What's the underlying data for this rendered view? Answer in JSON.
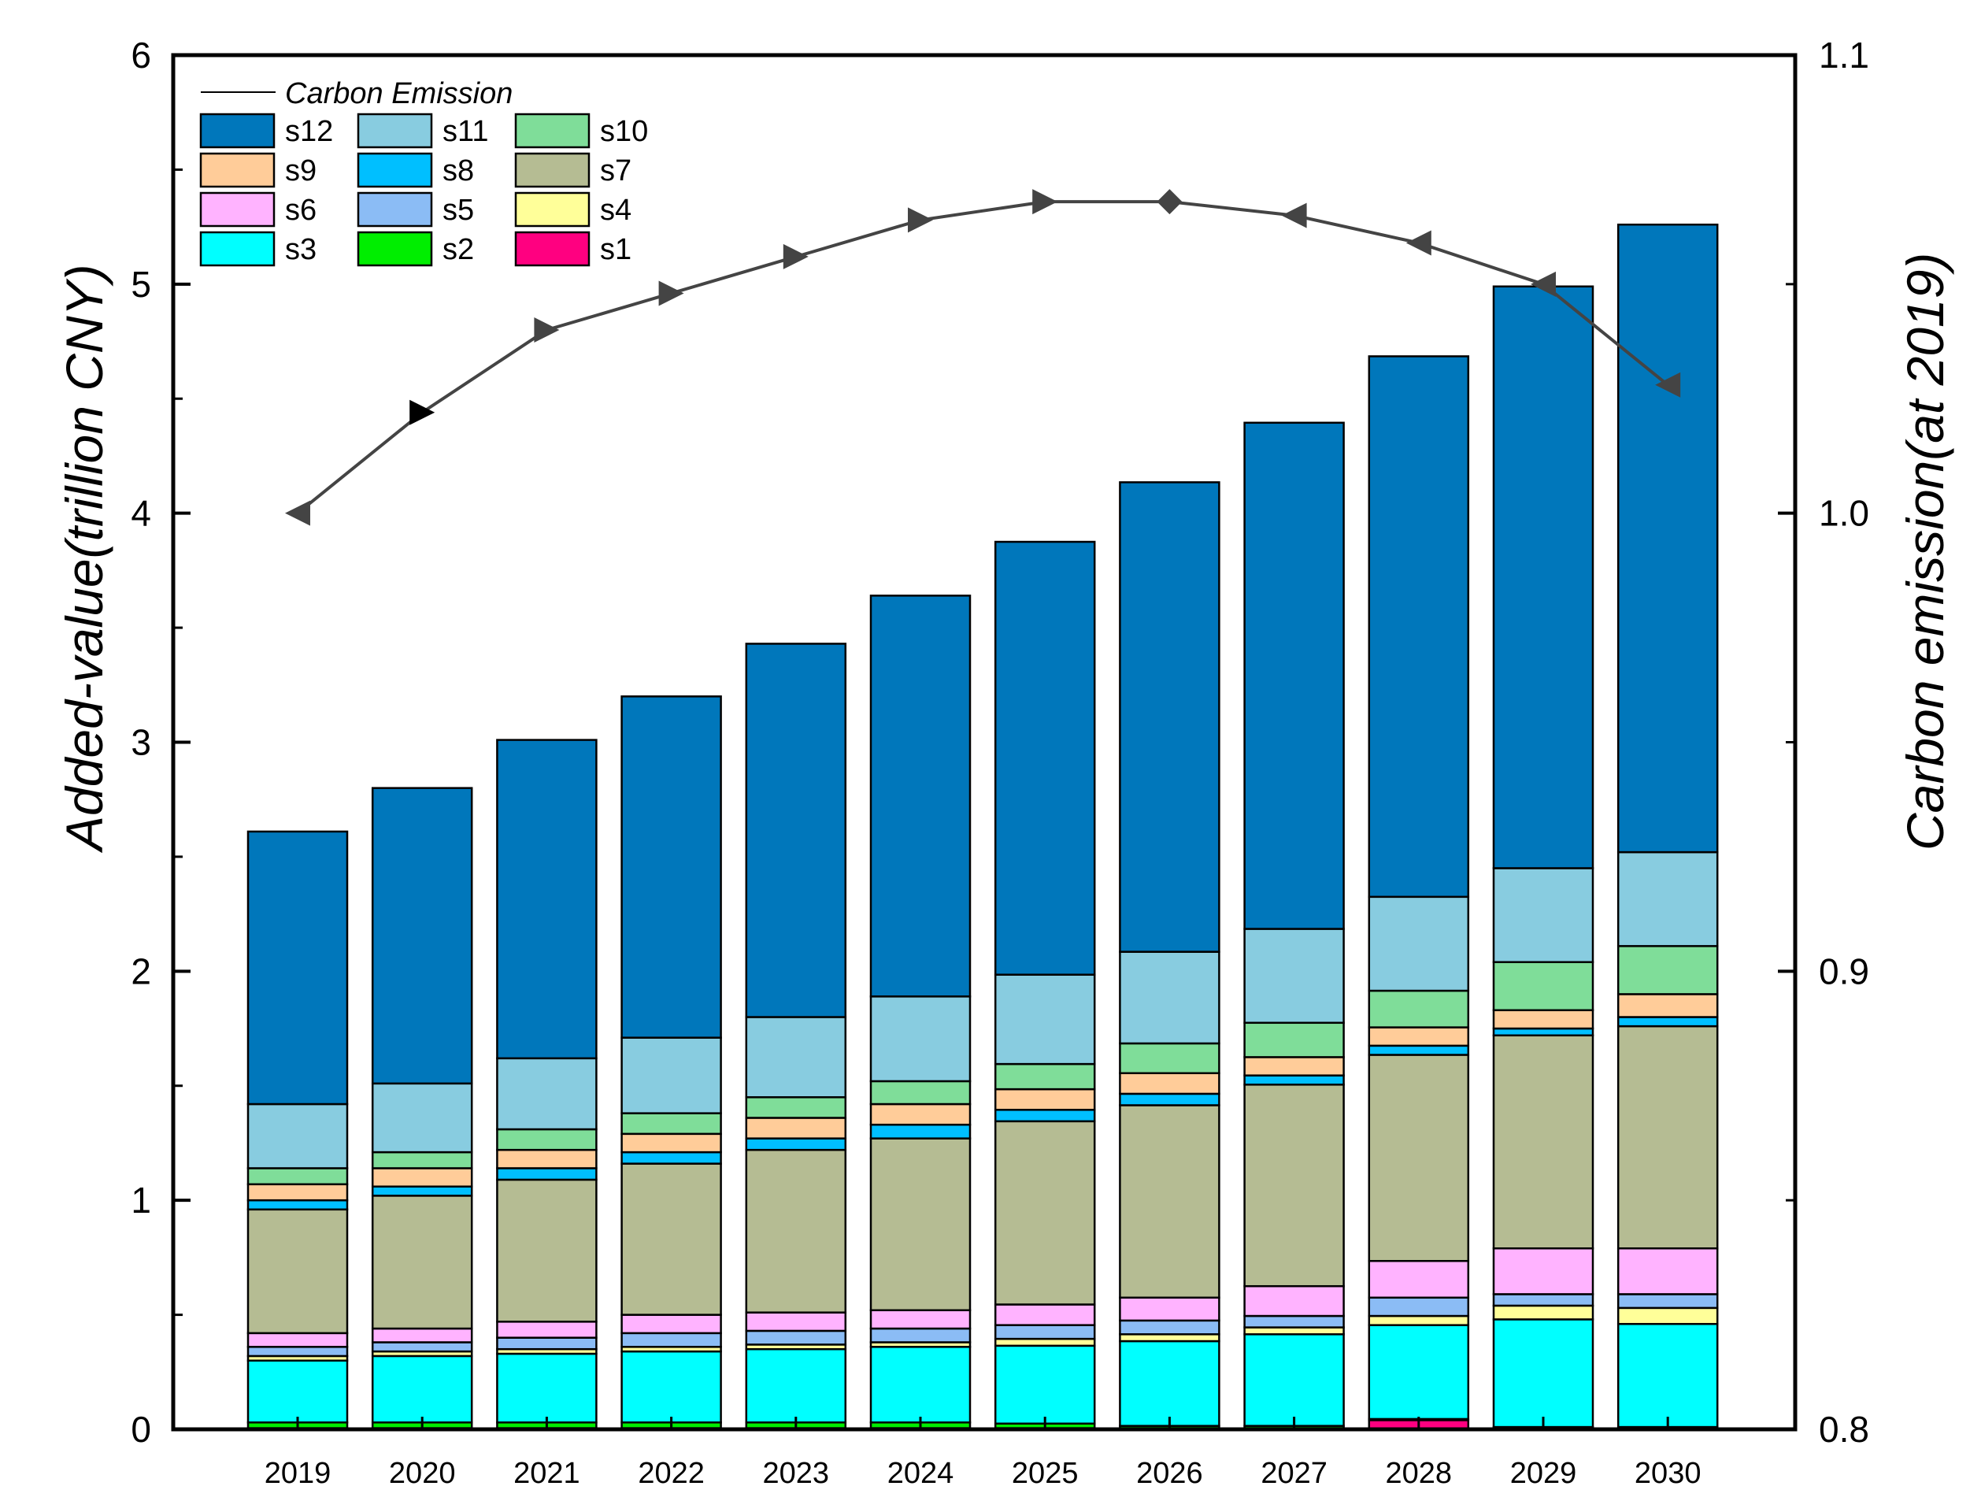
{
  "chart_data": {
    "type": "bar",
    "stacked": true,
    "categories": [
      "2019",
      "2020",
      "2021",
      "2022",
      "2023",
      "2024",
      "2025",
      "2026",
      "2027",
      "2028",
      "2029",
      "2030"
    ],
    "xlabel": "",
    "ylabel": "Added-value(trillion CNY)",
    "y2label": "Carbon emission(at 2019)",
    "ylim": [
      0,
      6
    ],
    "yticks": [
      "0",
      "1",
      "2",
      "3",
      "4",
      "5",
      "6"
    ],
    "y2lim": [
      0.8,
      1.1
    ],
    "y2ticks": [
      "0.8",
      "0.9",
      "1.0",
      "1.1"
    ],
    "legend_position": "top-left",
    "line_legend_label": "Carbon Emission",
    "series": [
      {
        "name": "s1",
        "color": "#ff0080",
        "values": [
          0.005,
          0.005,
          0.005,
          0.005,
          0.005,
          0.005,
          0.005,
          0.005,
          0.005,
          0.04,
          0.005,
          0.005
        ]
      },
      {
        "name": "s2",
        "color": "#00ee00",
        "values": [
          0.025,
          0.025,
          0.025,
          0.025,
          0.025,
          0.025,
          0.02,
          0.01,
          0.01,
          0.005,
          0.005,
          0.005
        ]
      },
      {
        "name": "s3",
        "color": "#00ffff",
        "values": [
          0.27,
          0.29,
          0.3,
          0.31,
          0.32,
          0.33,
          0.34,
          0.37,
          0.4,
          0.41,
          0.47,
          0.45
        ]
      },
      {
        "name": "s4",
        "color": "#ffff99",
        "values": [
          0.02,
          0.02,
          0.02,
          0.02,
          0.02,
          0.02,
          0.03,
          0.03,
          0.03,
          0.04,
          0.06,
          0.07
        ]
      },
      {
        "name": "s5",
        "color": "#8bbcf5",
        "values": [
          0.04,
          0.04,
          0.05,
          0.06,
          0.06,
          0.06,
          0.06,
          0.06,
          0.05,
          0.08,
          0.05,
          0.06
        ]
      },
      {
        "name": "s6",
        "color": "#ffb3ff",
        "values": [
          0.06,
          0.06,
          0.07,
          0.08,
          0.08,
          0.08,
          0.09,
          0.1,
          0.13,
          0.16,
          0.2,
          0.2
        ]
      },
      {
        "name": "s7",
        "color": "#b5bc93",
        "values": [
          0.54,
          0.58,
          0.62,
          0.66,
          0.71,
          0.75,
          0.8,
          0.84,
          0.88,
          0.9,
          0.93,
          0.97
        ]
      },
      {
        "name": "s8",
        "color": "#00bfff",
        "values": [
          0.04,
          0.04,
          0.05,
          0.05,
          0.05,
          0.06,
          0.05,
          0.05,
          0.04,
          0.04,
          0.03,
          0.04
        ]
      },
      {
        "name": "s9",
        "color": "#ffcc99",
        "values": [
          0.07,
          0.08,
          0.08,
          0.08,
          0.09,
          0.09,
          0.09,
          0.09,
          0.08,
          0.08,
          0.08,
          0.1
        ]
      },
      {
        "name": "s10",
        "color": "#7fdd99",
        "values": [
          0.07,
          0.07,
          0.09,
          0.09,
          0.09,
          0.1,
          0.11,
          0.13,
          0.15,
          0.16,
          0.21,
          0.21
        ]
      },
      {
        "name": "s11",
        "color": "#88cce0",
        "values": [
          0.28,
          0.3,
          0.31,
          0.33,
          0.35,
          0.37,
          0.39,
          0.4,
          0.41,
          0.41,
          0.41,
          0.41
        ]
      },
      {
        "name": "s12",
        "color": "#0077bb",
        "values": [
          1.19,
          1.29,
          1.39,
          1.49,
          1.63,
          1.75,
          1.89,
          2.05,
          2.21,
          2.36,
          2.54,
          2.74
        ]
      }
    ],
    "line_series": {
      "name": "Carbon Emission",
      "axis": "right",
      "color": "#444444",
      "values": [
        1.0,
        1.022,
        1.04,
        1.048,
        1.056,
        1.064,
        1.068,
        1.068,
        1.065,
        1.059,
        1.05,
        1.028
      ]
    }
  },
  "legend_order": [
    "s12",
    "s11",
    "s10",
    "s9",
    "s8",
    "s7",
    "s6",
    "s5",
    "s4",
    "s3",
    "s2",
    "s1"
  ]
}
